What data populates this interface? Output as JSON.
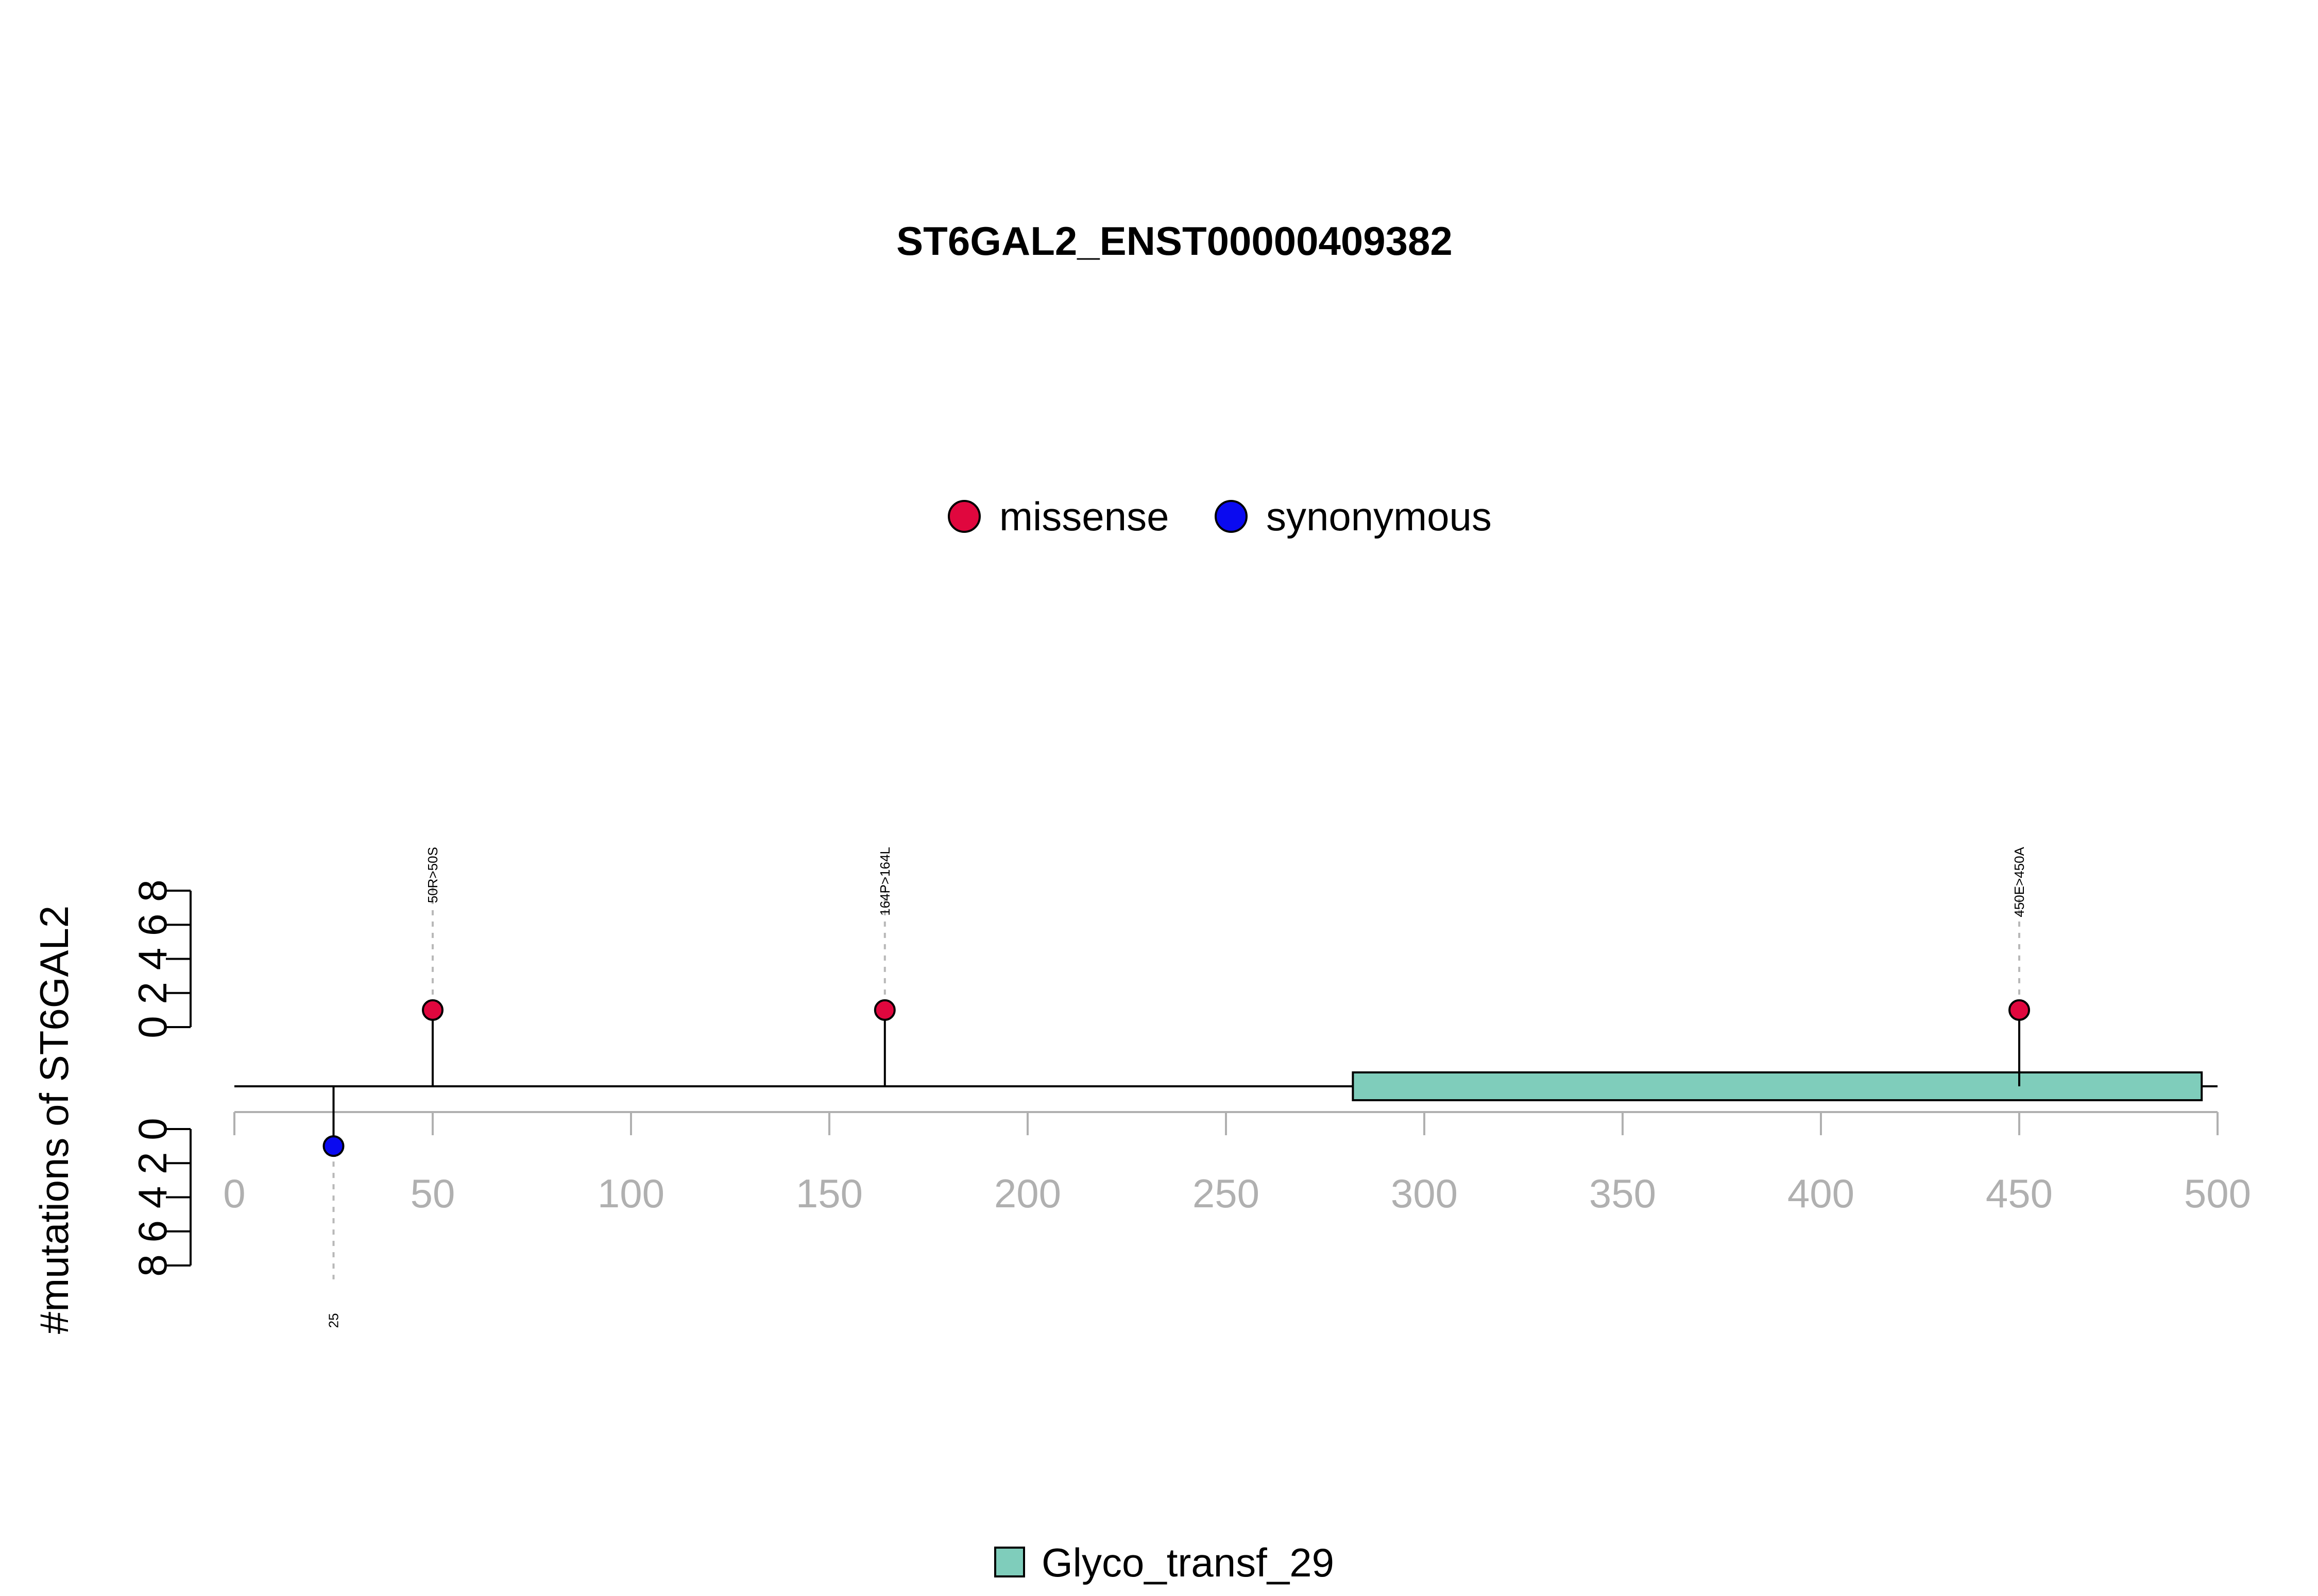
{
  "chart_data": {
    "type": "lollipop",
    "title": "ST6GAL2_ENST00000409382",
    "ylabel": "#mutations of ST6GAL2",
    "xlim": [
      0,
      500
    ],
    "x_ticks": [
      0,
      50,
      100,
      150,
      200,
      250,
      300,
      350,
      400,
      450,
      500
    ],
    "y_ticks_upper": [
      0,
      2,
      4,
      6,
      8
    ],
    "y_ticks_lower": [
      0,
      2,
      4,
      6,
      8
    ],
    "ylim": [
      0,
      8
    ],
    "legend_top": [
      {
        "name": "missense",
        "color": "#e0073e"
      },
      {
        "name": "synonymous",
        "color": "#0a0af0"
      }
    ],
    "mutations": [
      {
        "position": 50,
        "count": 1,
        "type": "missense",
        "label": "50R>50S"
      },
      {
        "position": 164,
        "count": 1,
        "type": "missense",
        "label": "164P>164L"
      },
      {
        "position": 450,
        "count": 1,
        "type": "missense",
        "label": "450E>450A"
      },
      {
        "position": 25,
        "count": 1,
        "type": "synonymous",
        "label": "25"
      }
    ],
    "domains": [
      {
        "name": "Glyco_transf_29",
        "start": 282,
        "end": 496,
        "color": "#7fcdbb"
      }
    ],
    "legend_bottom": [
      {
        "name": "Glyco_transf_29",
        "color": "#7fcdbb"
      }
    ]
  }
}
